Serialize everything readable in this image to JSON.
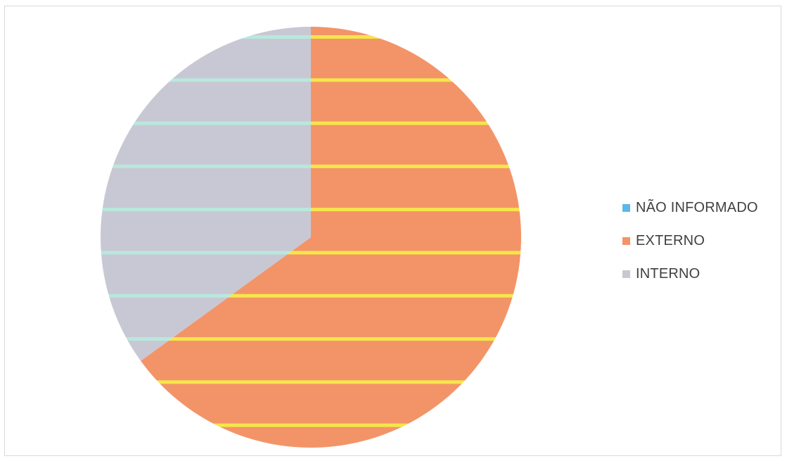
{
  "chart_data": {
    "type": "pie",
    "title": "",
    "start_angle_deg": 0,
    "direction": "clockwise",
    "slices": [
      {
        "label": "NÃO INFORMADO",
        "value": 0,
        "color": "#5BB8E8"
      },
      {
        "label": "EXTERNO",
        "value": 65,
        "color": "#F39468"
      },
      {
        "label": "INTERNO",
        "value": 35,
        "color": "#C8C8D4"
      }
    ],
    "stripe_colors": {
      "EXTERNO": "#F5E64A",
      "INTERNO": "#B8E8DC"
    },
    "legend_position": "right"
  }
}
